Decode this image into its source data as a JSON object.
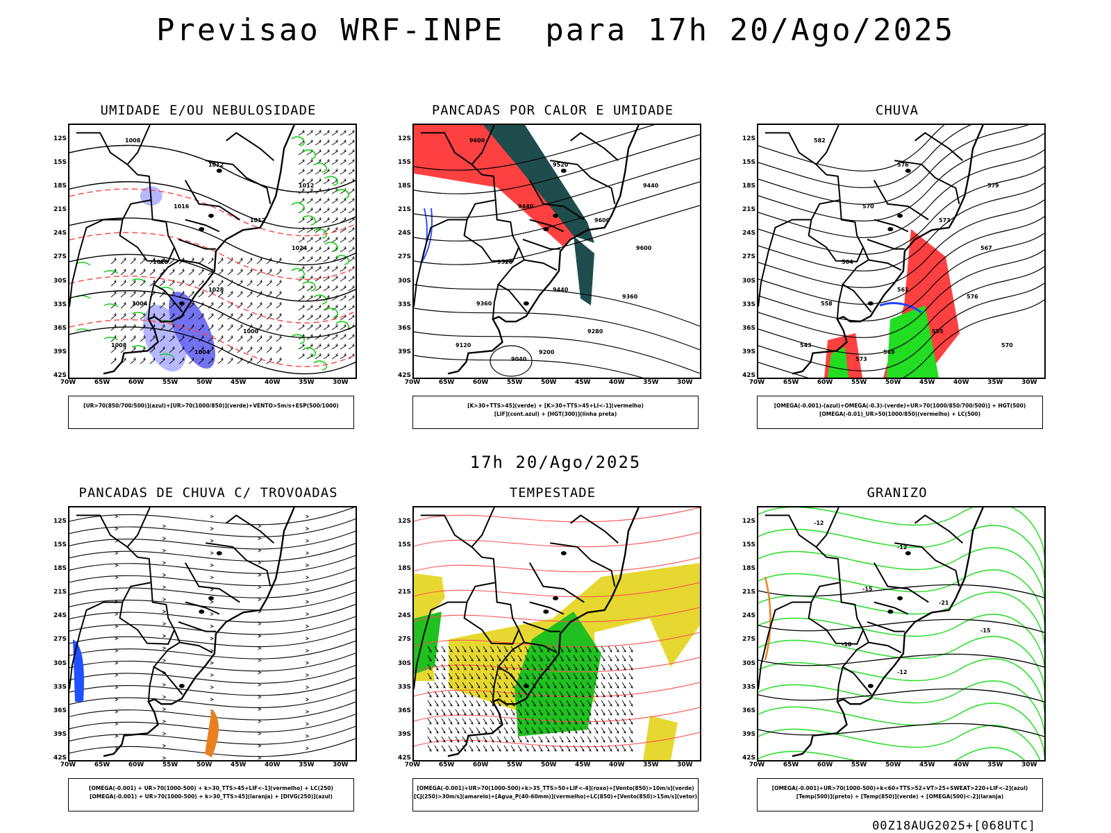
{
  "header": {
    "title": "Previsao WRF-INPE  para 17h 20/Ago/2025",
    "mid_date": "17h 20/Ago/2025",
    "run_stamp": "00Z18AUG2025+[068UTC]"
  },
  "axes": {
    "lat_labels": [
      "12S",
      "15S",
      "18S",
      "21S",
      "24S",
      "27S",
      "30S",
      "33S",
      "36S",
      "39S",
      "42S"
    ],
    "lon_labels": [
      "70W",
      "65W",
      "60W",
      "55W",
      "50W",
      "45W",
      "40W",
      "35W",
      "30W"
    ]
  },
  "panels": [
    {
      "id": "umidade",
      "title": "UMIDADE E/OU NEBULOSIDADE",
      "legend": [
        "[UR>70(850/700/500)](azul)+[UR>70(1000/850)](verde)+VENTO>5m/s+ESP(500/1000)"
      ],
      "contour_labels": [
        "1008",
        "1012",
        "1016",
        "1012",
        "1024",
        "1028",
        "1028",
        "1004",
        "1000",
        "1004",
        "1008",
        "1012"
      ],
      "colors": {
        "blue": "#b3b3ff",
        "blue_dark": "#6b6bf0",
        "green": "#00cc00",
        "red": "#ff4040"
      }
    },
    {
      "id": "pancadas-calor",
      "title": "PANCADAS POR CALOR E UMIDADE",
      "legend": [
        "[K>30+TTS>45](verde) + [K>30+TTS>45+LI<-1](vermelho)",
        "[LIF](cont.azul) + [HGT(300)](linha preta)"
      ],
      "contour_labels": [
        "9600",
        "9520",
        "9440",
        "9600",
        "9600",
        "9520",
        "9440",
        "9360",
        "9280",
        "9200",
        "9120",
        "9440",
        "9360",
        "9040"
      ],
      "colors": {
        "teal": "#1f4d4d",
        "red": "#ff4040",
        "blue": "#3050ff"
      }
    },
    {
      "id": "chuva",
      "title": "CHUVA",
      "legend": [
        "[OMEGA(-0.001)-(azul)+OMEGA(-0.3)-(verde)+UR>70(1000/850/700/500)] + HGT(500)",
        "[OMEGA(-0.01)_UR>50(1000/850)(vermelho) + LC(500)"
      ],
      "contour_labels": [
        "582",
        "576",
        "570",
        "573",
        "567",
        "564",
        "561",
        "558",
        "555",
        "549",
        "543",
        "579",
        "576",
        "573",
        "570"
      ],
      "colors": {
        "red": "#ff4040",
        "green": "#22dd22",
        "blue": "#2040ff"
      }
    },
    {
      "id": "pancadas-trovoadas",
      "title": "PANCADAS DE CHUVA C/ TROVOADAS",
      "legend": [
        "[OMEGA(-0.001) + UR>70(1000-500) + k>30_TTS>45+LIF<-1](vermelho) + LC(250)",
        "[OMEGA(-0.001) + UR>70(1000-500) + k>30_TTS>45](laranja) + [DIVG(250)](azul)"
      ],
      "contour_labels": [],
      "colors": {
        "blue": "#2050ff",
        "orange": "#e88020",
        "red": "#ff2020"
      }
    },
    {
      "id": "tempestade",
      "title": "TEMPESTADE",
      "legend": [
        "[OMEGA(-0.001)+UR>70(1000-500)+k>35_TTS>50+LIF<-4](roxo)+[Vento(850)>10m/s](verde)",
        "[CJ(250)>30m/s](amarelo)+[Agua_P(40-60mm)](vermelho)+LC(850)+[Vento(850)>15m/s](vetor)"
      ],
      "contour_labels": [],
      "colors": {
        "yellow": "#e6d830",
        "green": "#20c020",
        "red": "#ff5050"
      }
    },
    {
      "id": "granizo",
      "title": "GRANIZO",
      "legend": [
        "[OMEGA(-0.001)+UR>70(1000-500)+k<60+TTS>52+VT>25+SWEAT>220+LIF<-2](azul)",
        "[Temp(500)](preto) + [Temp(850)](verde) + [OMEGA(500)<-2](laranja)"
      ],
      "contour_labels": [
        "-12",
        "-12",
        "-15",
        "-21",
        "-15",
        "-18",
        "-12"
      ],
      "colors": {
        "green": "#30dd30",
        "orange": "#e88020"
      }
    }
  ]
}
